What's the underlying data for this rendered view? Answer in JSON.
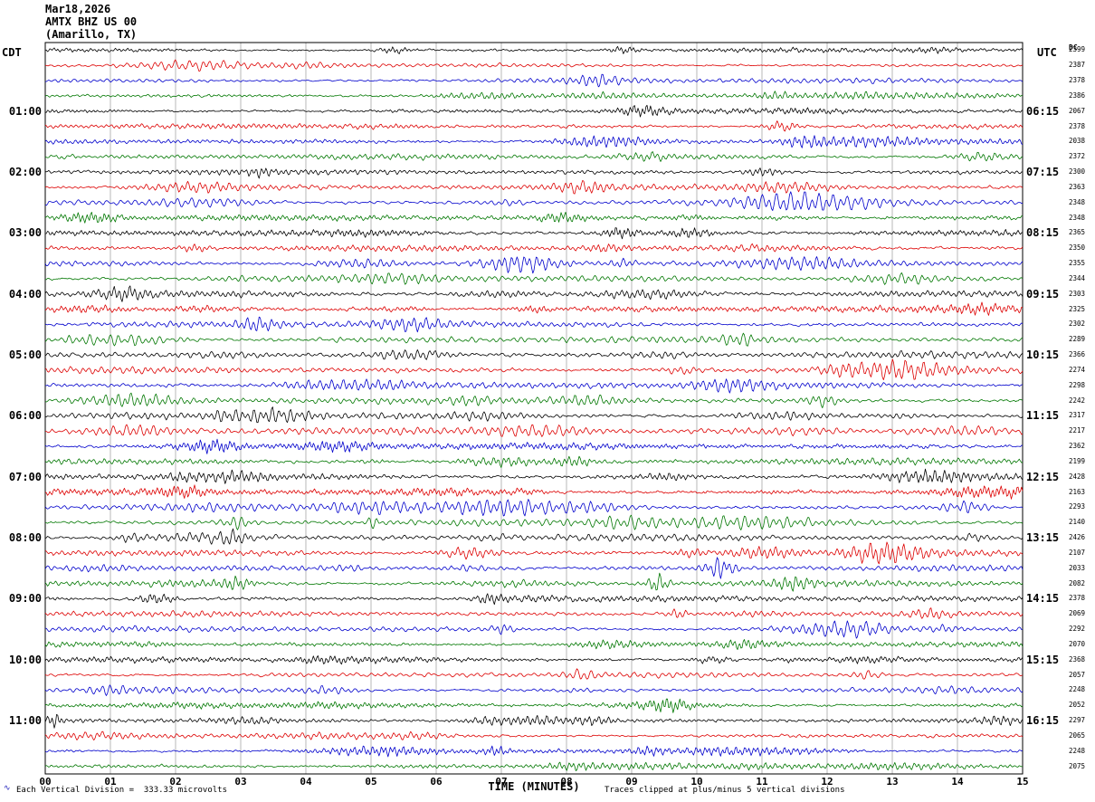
{
  "header": {
    "date": "Mar18,2026",
    "station": "AMTX BHZ US 00",
    "location": "(Amarillo, TX)"
  },
  "axes": {
    "left_tz": "CDT",
    "right_tz": "UTC",
    "dc_label": "DC",
    "x_label": "TIME (MINUTES)",
    "x_ticks": [
      "00",
      "01",
      "02",
      "03",
      "04",
      "05",
      "06",
      "07",
      "08",
      "09",
      "10",
      "11",
      "12",
      "13",
      "14",
      "15"
    ]
  },
  "left_labels": [
    "01:00",
    "02:00",
    "03:00",
    "04:00",
    "05:00",
    "06:00",
    "07:00",
    "08:00",
    "09:00",
    "10:00",
    "11:00"
  ],
  "right_labels": [
    "06:15",
    "07:15",
    "08:15",
    "09:15",
    "10:15",
    "11:15",
    "12:15",
    "13:15",
    "14:15",
    "15:15",
    "16:15"
  ],
  "footer": {
    "scale_icon": "∿",
    "left": "Each Vertical Division =  333.33 microvolts",
    "right": "Traces clipped at plus/minus 5 vertical divisions"
  },
  "chart_data": {
    "type": "line",
    "subtype": "helicorder-seismogram",
    "title": "AMTX BHZ US 00 (Amarillo, TX) Mar18,2026",
    "rows": 48,
    "minutes_per_row": 15,
    "x_range": [
      0,
      15
    ],
    "first_row_left_time_cdt": "00:00",
    "first_row_right_time_utc": "05:15",
    "hour_rows_left": [
      "01:00",
      "02:00",
      "03:00",
      "04:00",
      "05:00",
      "06:00",
      "07:00",
      "08:00",
      "09:00",
      "10:00",
      "11:00"
    ],
    "hour_rows_right": [
      "06:15",
      "07:15",
      "08:15",
      "09:15",
      "10:15",
      "11:15",
      "12:15",
      "13:15",
      "14:15",
      "15:15",
      "16:15"
    ],
    "color_cycle": [
      "black",
      "red",
      "blue",
      "green"
    ],
    "trace_colors": [
      "#000000",
      "#dd0000",
      "#0000cc",
      "#007700"
    ],
    "grid": "vertical lines every 1 minute",
    "microvolts_per_division": 333.33,
    "clip_divisions": 5,
    "row_dc_values": [
      2399,
      2387,
      2378,
      2386,
      2067,
      2378,
      2038,
      2372,
      2300,
      2363,
      2348,
      2348,
      2365,
      2350,
      2355,
      2344,
      2303,
      2325,
      2302,
      2289,
      2366,
      2274,
      2298,
      2242,
      2317,
      2217,
      2362,
      2199,
      2428,
      2163,
      2293,
      2140,
      2426,
      2107,
      2033,
      2082,
      2378,
      2069,
      2292,
      2070,
      2368,
      2057,
      2248,
      2052,
      2297,
      2065,
      2248,
      2075
    ],
    "events": [
      {
        "row_index": 34,
        "minute": 10.35,
        "relative_amplitude": 13,
        "width_minutes": 0.45
      },
      {
        "row_index": 35,
        "minute": 9.4,
        "relative_amplitude": 11,
        "width_minutes": 0.3
      },
      {
        "row_index": 33,
        "minute": 9.9,
        "relative_amplitude": 5,
        "width_minutes": 0.5
      },
      {
        "row_index": 44,
        "minute": 0.15,
        "relative_amplitude": 10,
        "width_minutes": 0.2
      },
      {
        "row_index": 37,
        "minute": 9.7,
        "relative_amplitude": 6,
        "width_minutes": 0.35
      },
      {
        "row_index": 38,
        "minute": 7.0,
        "relative_amplitude": 6,
        "width_minutes": 0.3
      },
      {
        "row_index": 31,
        "minute": 5.05,
        "relative_amplitude": 6,
        "width_minutes": 0.2
      },
      {
        "row_index": 46,
        "minute": 6.9,
        "relative_amplitude": 6,
        "width_minutes": 0.4
      }
    ]
  }
}
